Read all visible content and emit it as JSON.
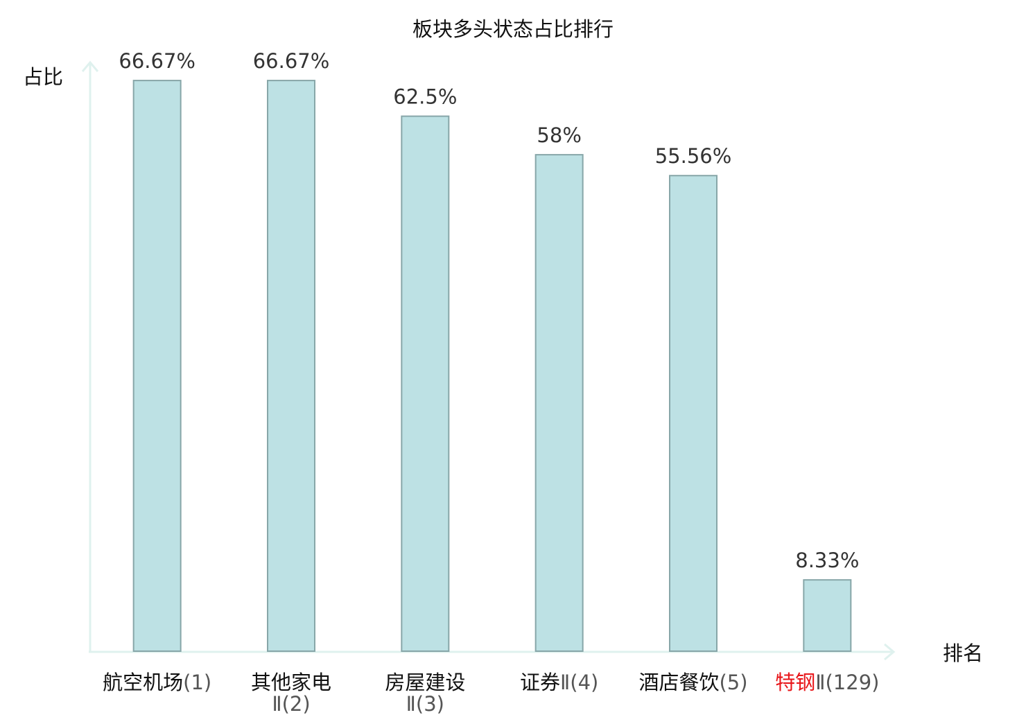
{
  "chart_data": {
    "type": "bar",
    "title": "板块多头状态占比排行",
    "ylabel": "占比",
    "xlabel": "排名",
    "ylim": [
      0,
      70
    ],
    "grid": false,
    "categories": [
      {
        "name": "航空机场",
        "rank": "(1)",
        "line1": "航空机场",
        "line1_suffix": "(1)",
        "line2": ""
      },
      {
        "name": "其他家电Ⅱ",
        "rank": "(2)",
        "line1": "其他家电",
        "line1_suffix": "",
        "line2": "Ⅱ(2)"
      },
      {
        "name": "房屋建设Ⅱ",
        "rank": "(3)",
        "line1": "房屋建设",
        "line1_suffix": "",
        "line2": "Ⅱ(3)"
      },
      {
        "name": "证券Ⅱ",
        "rank": "(4)",
        "line1": "证券",
        "line1_suffix": "Ⅱ(4)",
        "line2": ""
      },
      {
        "name": "酒店餐饮",
        "rank": "(5)",
        "line1": "酒店餐饮",
        "line1_suffix": "(5)",
        "line2": ""
      },
      {
        "name": "特钢Ⅱ",
        "rank": "(129)",
        "line1": "特钢",
        "line1_suffix": "Ⅱ(129)",
        "line2": "",
        "highlight": true
      }
    ],
    "values": [
      66.67,
      66.67,
      62.5,
      58,
      55.56,
      8.33
    ],
    "value_labels": [
      "66.67%",
      "66.67%",
      "62.5%",
      "58%",
      "55.56%",
      "8.33%"
    ],
    "colors": {
      "bar_fill": "#bde1e4",
      "bar_stroke": "#87a6a8",
      "axis": "#dff1ee",
      "highlight_text": "#e8161a",
      "text": "#111111",
      "value_text": "#333333"
    }
  }
}
